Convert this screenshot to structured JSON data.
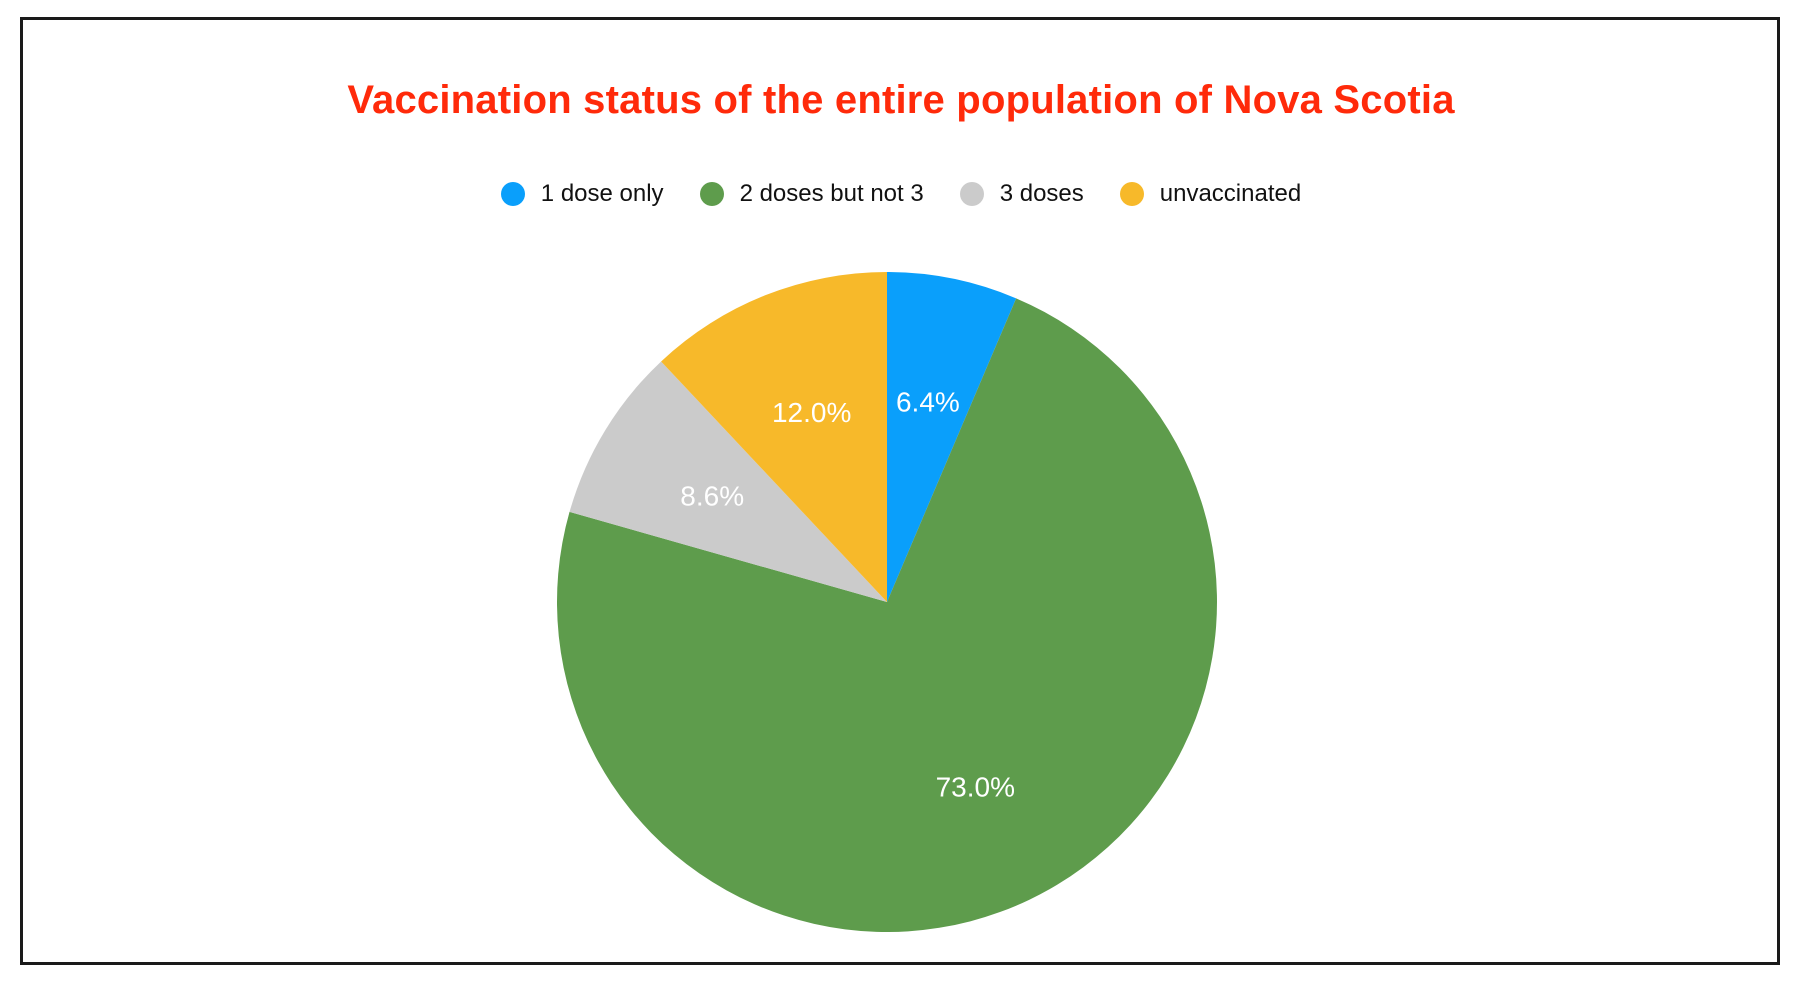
{
  "chart_data": {
    "type": "pie",
    "title": "Vaccination status of the entire population of Nova Scotia",
    "title_color": "#ff2a0a",
    "legend_position": "top-center",
    "slices": [
      {
        "name": "1 dose only",
        "value": 6.4,
        "label": "6.4%",
        "color": "#0a9ffb"
      },
      {
        "name": "2 doses but not 3",
        "value": 73.0,
        "label": "73.0%",
        "color": "#5e9c4c"
      },
      {
        "name": "3 doses",
        "value": 8.6,
        "label": "8.6%",
        "color": "#cbcbcb"
      },
      {
        "name": "unvaccinated",
        "value": 12.0,
        "label": "12.0%",
        "color": "#f7b92a"
      }
    ]
  }
}
